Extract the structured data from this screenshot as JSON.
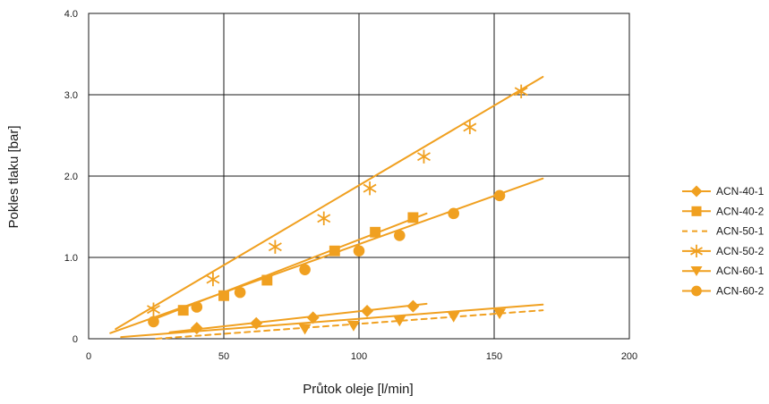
{
  "chart_data": {
    "type": "scatter",
    "xlabel": "Průtok oleje [l/min]",
    "ylabel": "Pokles tlaku [bar]",
    "xlim": [
      0,
      200
    ],
    "ylim": [
      0,
      4.0
    ],
    "x_ticks": [
      "0",
      "50",
      "100",
      "150",
      "200"
    ],
    "y_ticks": [
      "0",
      "1.0",
      "2.0",
      "3.0",
      "4.0"
    ],
    "grid": true,
    "legend_position": "right",
    "color": "#f0a020",
    "series": [
      {
        "name": "ACN-40-1",
        "marker": "diamond",
        "line_style": "solid",
        "x": [
          40,
          62,
          83,
          103,
          120
        ],
        "y": [
          0.13,
          0.19,
          0.26,
          0.34,
          0.4
        ],
        "fit": [
          [
            30,
            0.08
          ],
          [
            125,
            0.43
          ]
        ]
      },
      {
        "name": "ACN-40-2",
        "marker": "square",
        "line_style": "solid",
        "x": [
          35,
          50,
          66,
          91,
          106,
          120
        ],
        "y": [
          0.35,
          0.53,
          0.72,
          1.08,
          1.31,
          1.49
        ],
        "fit": [
          [
            25,
            0.25
          ],
          [
            125,
            1.54
          ]
        ]
      },
      {
        "name": "ACN-50-1",
        "marker": "none",
        "line_style": "dashed",
        "x": [],
        "y": [],
        "fit": [
          [
            25,
            0.0
          ],
          [
            168,
            0.35
          ]
        ]
      },
      {
        "name": "ACN-50-2",
        "marker": "cross",
        "line_style": "solid",
        "x": [
          24,
          46,
          69,
          87,
          104,
          124,
          141,
          160
        ],
        "y": [
          0.36,
          0.73,
          1.13,
          1.48,
          1.85,
          2.24,
          2.6,
          3.04
        ],
        "fit": [
          [
            10,
            0.12
          ],
          [
            168,
            3.22
          ]
        ]
      },
      {
        "name": "ACN-60-1",
        "marker": "triangle-down",
        "line_style": "solid",
        "x": [
          80,
          98,
          115,
          135,
          152
        ],
        "y": [
          0.12,
          0.16,
          0.22,
          0.27,
          0.31
        ],
        "fit": [
          [
            12,
            0.02
          ],
          [
            168,
            0.42
          ]
        ]
      },
      {
        "name": "ACN-60-2",
        "marker": "circle",
        "line_style": "solid",
        "x": [
          24,
          40,
          56,
          80,
          100,
          115,
          135,
          152
        ],
        "y": [
          0.21,
          0.39,
          0.57,
          0.85,
          1.08,
          1.27,
          1.54,
          1.76
        ],
        "fit": [
          [
            8,
            0.07
          ],
          [
            168,
            1.97
          ]
        ]
      }
    ]
  }
}
